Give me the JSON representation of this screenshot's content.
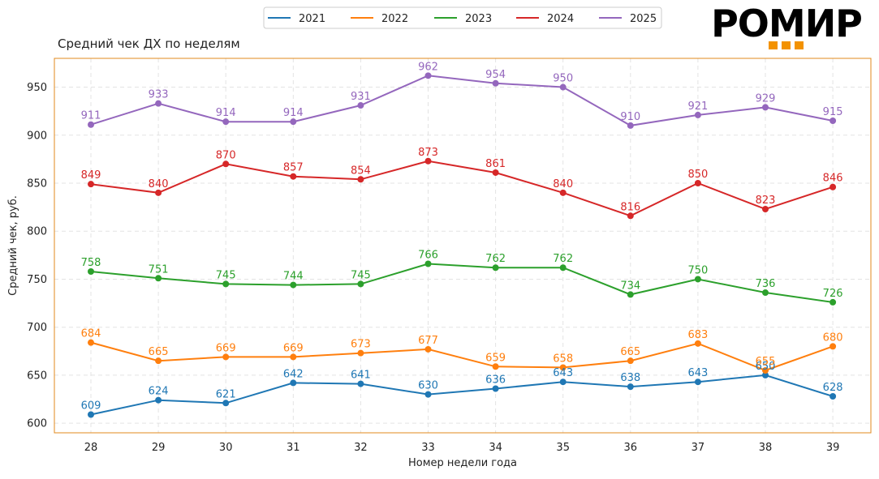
{
  "brand": {
    "name": "РОМИР",
    "accent_color": "#f39200",
    "text_color": "#000000"
  },
  "chart_data": {
    "type": "line",
    "title": "Средний чек ДХ по неделям",
    "xlabel": "Номер недели года",
    "ylabel": "Средний чек, руб.",
    "x": [
      28,
      29,
      30,
      31,
      32,
      33,
      34,
      35,
      36,
      37,
      38,
      39
    ],
    "ylim": [
      590,
      980
    ],
    "yticks": [
      600,
      650,
      700,
      750,
      800,
      850,
      900,
      950
    ],
    "grid": true,
    "legend_position": "top-center",
    "frame_color": "#e08a1e",
    "series": [
      {
        "name": "2021",
        "color": "#1f77b4",
        "values": [
          609,
          624,
          621,
          642,
          641,
          630,
          636,
          643,
          638,
          643,
          650,
          628
        ]
      },
      {
        "name": "2022",
        "color": "#ff7f0e",
        "values": [
          684,
          665,
          669,
          669,
          673,
          677,
          659,
          658,
          665,
          683,
          655,
          680
        ]
      },
      {
        "name": "2023",
        "color": "#2ca02c",
        "values": [
          758,
          751,
          745,
          744,
          745,
          766,
          762,
          762,
          734,
          750,
          736,
          726
        ]
      },
      {
        "name": "2024",
        "color": "#d62728",
        "values": [
          849,
          840,
          870,
          857,
          854,
          873,
          861,
          840,
          816,
          850,
          823,
          846
        ]
      },
      {
        "name": "2025",
        "color": "#9467bd",
        "values": [
          911,
          933,
          914,
          914,
          931,
          962,
          954,
          950,
          910,
          921,
          929,
          915
        ]
      }
    ]
  }
}
